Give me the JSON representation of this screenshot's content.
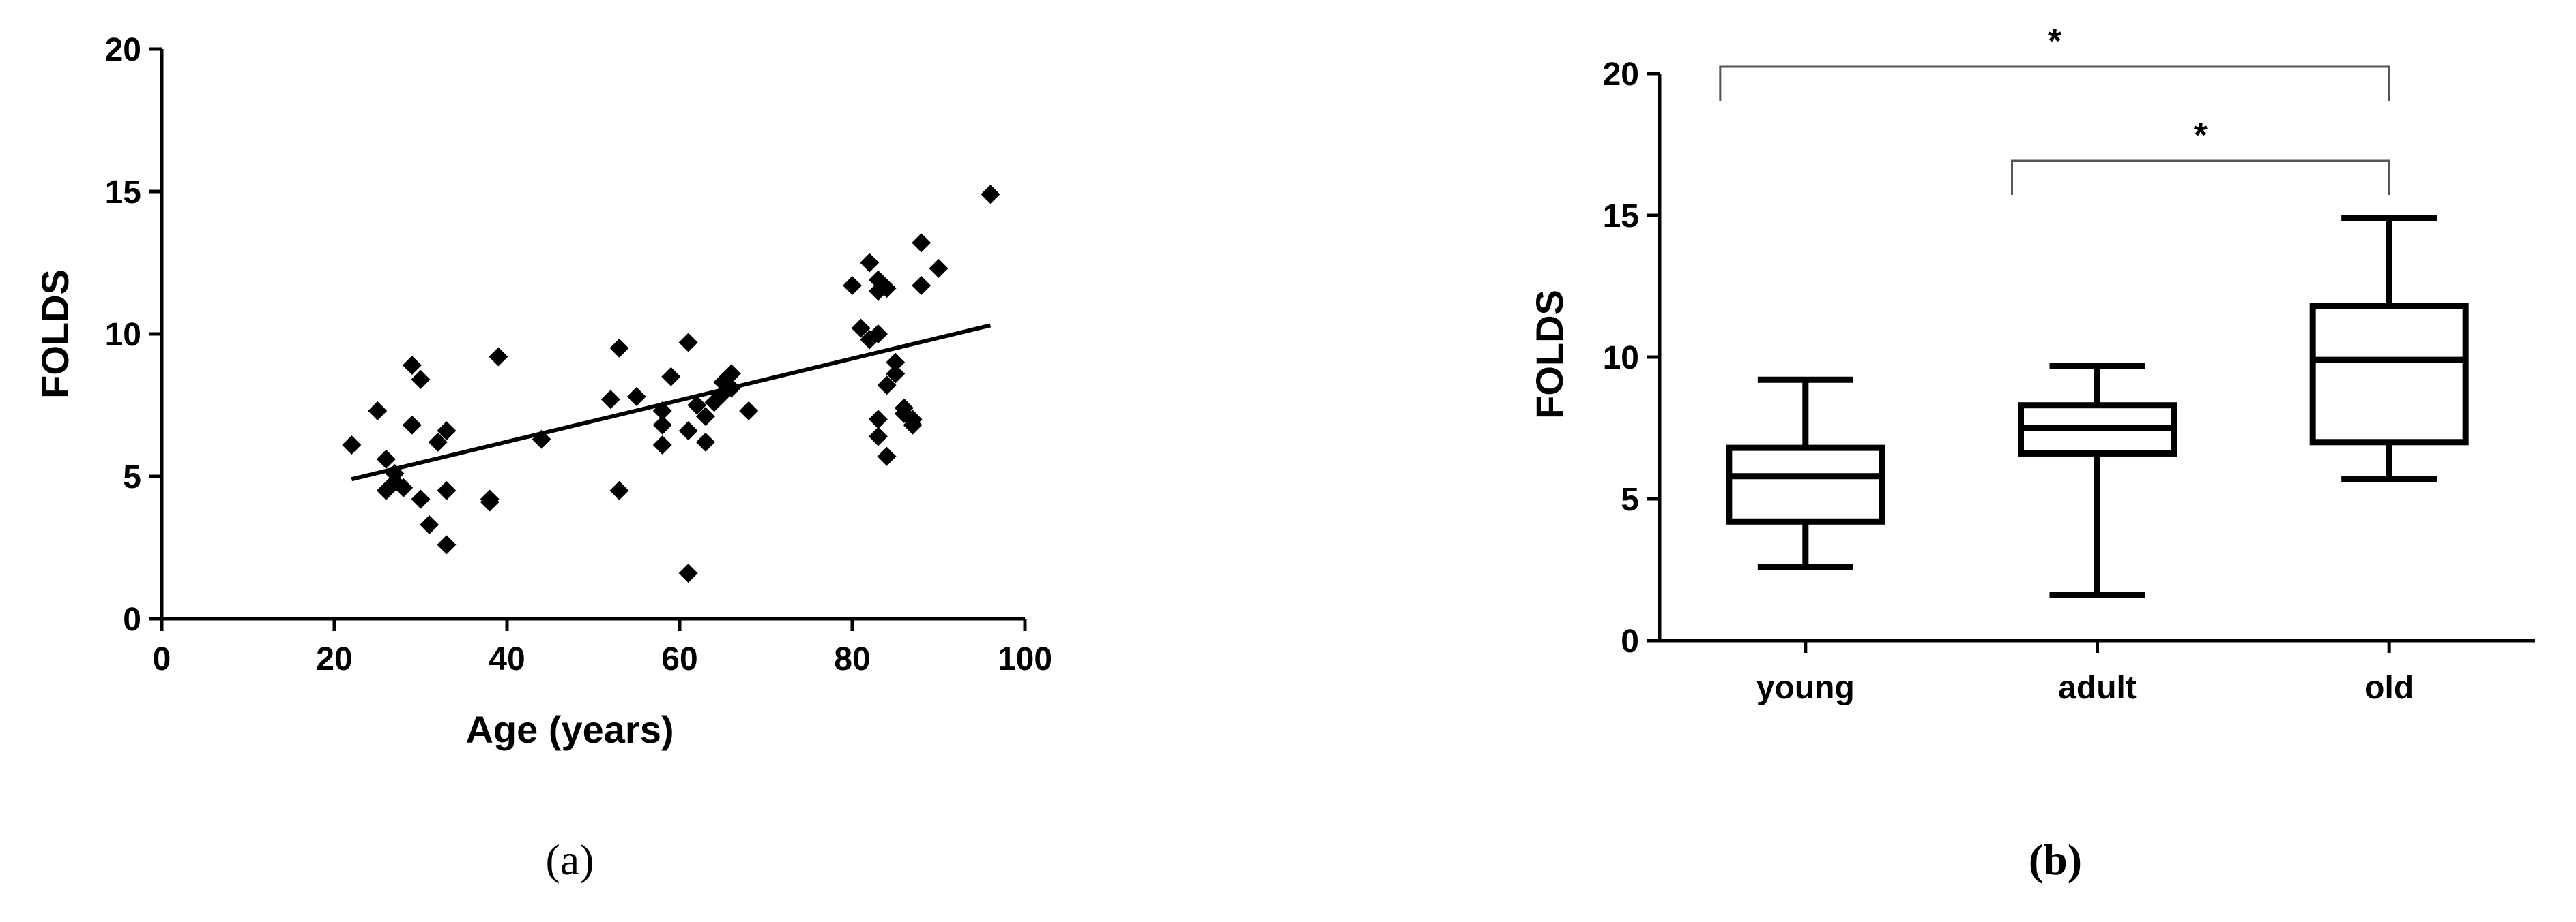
{
  "chart_data": [
    {
      "type": "scatter",
      "panel_label": "(a)",
      "xlabel": "Age (years)",
      "ylabel": "FOLDS",
      "xlim": [
        0,
        100
      ],
      "ylim": [
        0,
        20
      ],
      "xticks": [
        "0",
        "20",
        "40",
        "60",
        "80",
        "100"
      ],
      "yticks": [
        "0",
        "5",
        "10",
        "15",
        "20"
      ],
      "points": [
        [
          22,
          6.1
        ],
        [
          25,
          7.3
        ],
        [
          26,
          5.6
        ],
        [
          26,
          4.5
        ],
        [
          27,
          5.1
        ],
        [
          27,
          4.8
        ],
        [
          28,
          4.6
        ],
        [
          29,
          8.9
        ],
        [
          29,
          6.8
        ],
        [
          30,
          8.4
        ],
        [
          30,
          4.2
        ],
        [
          31,
          3.3
        ],
        [
          32,
          6.2
        ],
        [
          33,
          6.6
        ],
        [
          33,
          4.5
        ],
        [
          33,
          2.6
        ],
        [
          38,
          4.2
        ],
        [
          38,
          4.1
        ],
        [
          39,
          9.2
        ],
        [
          44,
          6.3
        ],
        [
          52,
          7.7
        ],
        [
          53,
          9.5
        ],
        [
          53,
          4.5
        ],
        [
          55,
          7.8
        ],
        [
          58,
          7.3
        ],
        [
          58,
          6.8
        ],
        [
          58,
          6.1
        ],
        [
          59,
          8.5
        ],
        [
          61,
          9.7
        ],
        [
          61,
          6.6
        ],
        [
          61,
          1.6
        ],
        [
          62,
          7.5
        ],
        [
          63,
          6.2
        ],
        [
          63,
          7.1
        ],
        [
          64,
          7.6
        ],
        [
          65,
          8.3
        ],
        [
          65,
          7.9
        ],
        [
          66,
          8.6
        ],
        [
          66,
          8.1
        ],
        [
          68,
          7.3
        ],
        [
          80,
          11.7
        ],
        [
          81,
          10.2
        ],
        [
          82,
          9.8
        ],
        [
          82,
          12.5
        ],
        [
          83,
          11.9
        ],
        [
          83,
          11.5
        ],
        [
          83,
          10.0
        ],
        [
          83,
          7.0
        ],
        [
          83,
          6.4
        ],
        [
          84,
          11.6
        ],
        [
          84,
          8.2
        ],
        [
          84,
          5.7
        ],
        [
          85,
          9.0
        ],
        [
          85,
          8.6
        ],
        [
          86,
          7.4
        ],
        [
          86,
          7.2
        ],
        [
          87,
          7.0
        ],
        [
          87,
          6.8
        ],
        [
          88,
          13.2
        ],
        [
          88,
          11.7
        ],
        [
          90,
          12.3
        ],
        [
          96,
          14.9
        ]
      ],
      "regression_line": {
        "x": [
          22,
          96
        ],
        "y": [
          4.9,
          10.3
        ]
      }
    },
    {
      "type": "box",
      "panel_label": "(b)",
      "ylabel": "FOLDS",
      "ylim": [
        0,
        20
      ],
      "yticks": [
        "0",
        "5",
        "10",
        "15",
        "20"
      ],
      "categories": [
        "young",
        "adult",
        "old"
      ],
      "boxes": [
        {
          "min": 2.6,
          "q1": 4.2,
          "median": 5.8,
          "q3": 6.8,
          "max": 9.2
        },
        {
          "min": 1.6,
          "q1": 6.6,
          "median": 7.5,
          "q3": 8.3,
          "max": 9.7
        },
        {
          "min": 5.7,
          "q1": 7.0,
          "median": 9.9,
          "q3": 11.8,
          "max": 14.9
        }
      ],
      "significance": [
        {
          "from": "young",
          "to": "old",
          "label": "*"
        },
        {
          "from": "adult",
          "to": "old",
          "label": "*"
        }
      ]
    }
  ]
}
